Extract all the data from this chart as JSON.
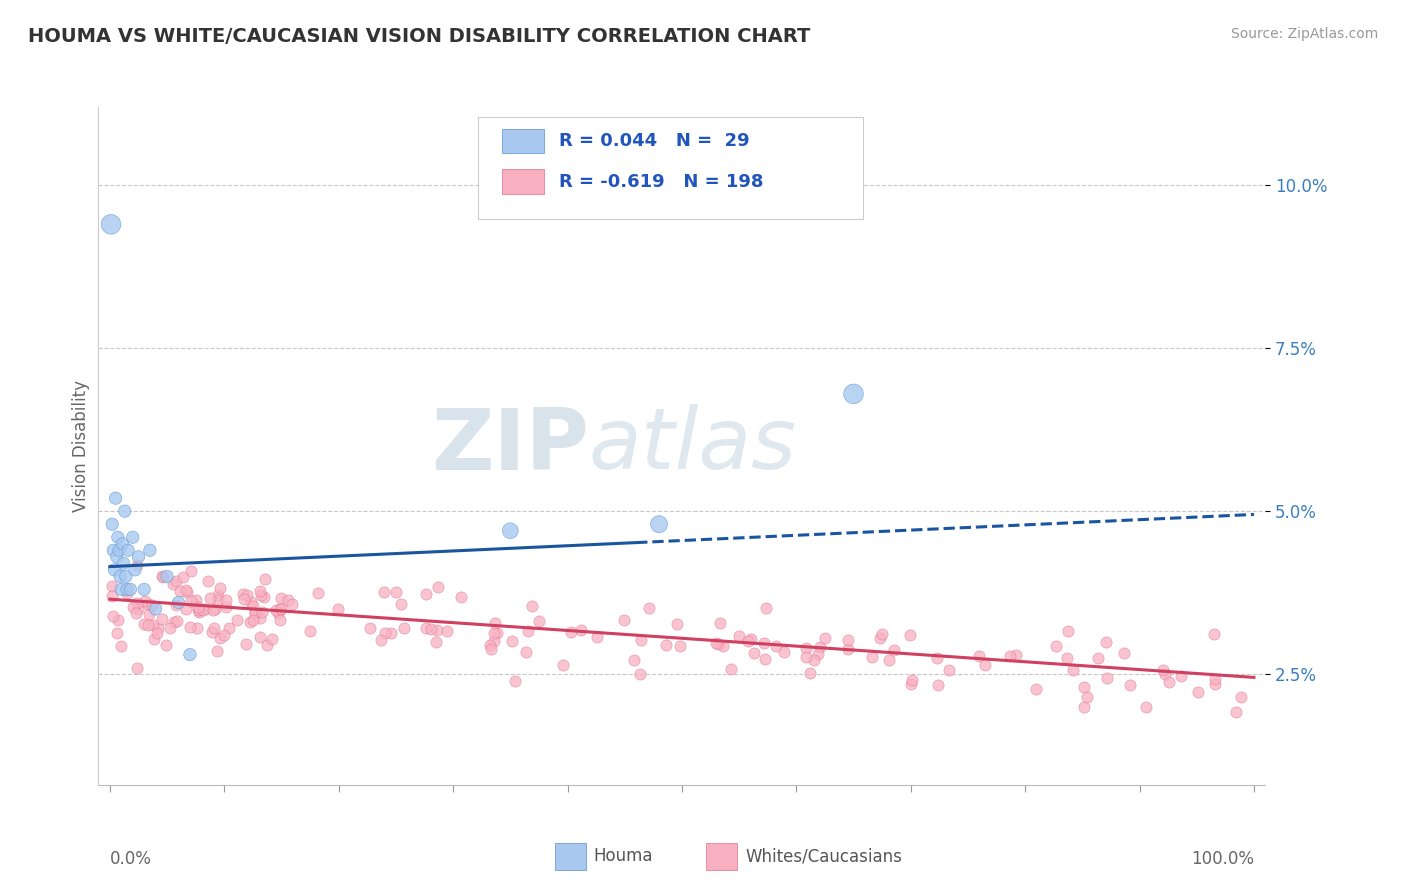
{
  "title": "HOUMA VS WHITE/CAUCASIAN VISION DISABILITY CORRELATION CHART",
  "source": "Source: ZipAtlas.com",
  "ylabel": "Vision Disability",
  "yticks": [
    0.025,
    0.05,
    0.075,
    0.1
  ],
  "ytick_labels": [
    "2.5%",
    "5.0%",
    "7.5%",
    "10.0%"
  ],
  "xticks": [
    0.0,
    0.1,
    0.2,
    0.3,
    0.4,
    0.5,
    0.6,
    0.7,
    0.8,
    0.9,
    1.0
  ],
  "xlim": [
    -0.01,
    1.01
  ],
  "ylim": [
    0.008,
    0.112
  ],
  "houma_color": "#A8C8F0",
  "houma_edge": "#5590D0",
  "white_color": "#F8B0C0",
  "white_edge": "#E07090",
  "blue_line_color": "#1A56A0",
  "pink_line_color": "#D04060",
  "background_color": "#FFFFFF",
  "watermark_color": "#C8D8E8",
  "houma_points_x": [
    0.001,
    0.002,
    0.003,
    0.004,
    0.005,
    0.006,
    0.007,
    0.008,
    0.009,
    0.01,
    0.011,
    0.012,
    0.013,
    0.014,
    0.015,
    0.016,
    0.018,
    0.02,
    0.022,
    0.025,
    0.03,
    0.035,
    0.04,
    0.05,
    0.06,
    0.07,
    0.35,
    0.48,
    0.65
  ],
  "houma_points_y": [
    0.094,
    0.048,
    0.044,
    0.041,
    0.052,
    0.043,
    0.046,
    0.044,
    0.04,
    0.038,
    0.045,
    0.042,
    0.05,
    0.04,
    0.038,
    0.044,
    0.038,
    0.046,
    0.041,
    0.043,
    0.038,
    0.044,
    0.035,
    0.04,
    0.036,
    0.028,
    0.047,
    0.048,
    0.068
  ],
  "houma_sizes": [
    200,
    80,
    80,
    80,
    80,
    80,
    80,
    80,
    80,
    80,
    80,
    80,
    80,
    80,
    80,
    80,
    80,
    80,
    80,
    80,
    80,
    80,
    80,
    80,
    80,
    80,
    130,
    150,
    200
  ],
  "houma_line_x0": 0.0,
  "houma_line_x_solid_end": 0.46,
  "houma_line_x1": 1.0,
  "houma_line_y0": 0.0415,
  "houma_line_slope": 0.008,
  "pink_line_y0": 0.0365,
  "pink_line_slope": -0.012,
  "houma_label": "Houma",
  "white_label": "Whites/Caucasians",
  "legend_r1_text": "R = 0.044   N =  29",
  "legend_r2_text": "R = -0.619   N = 198"
}
